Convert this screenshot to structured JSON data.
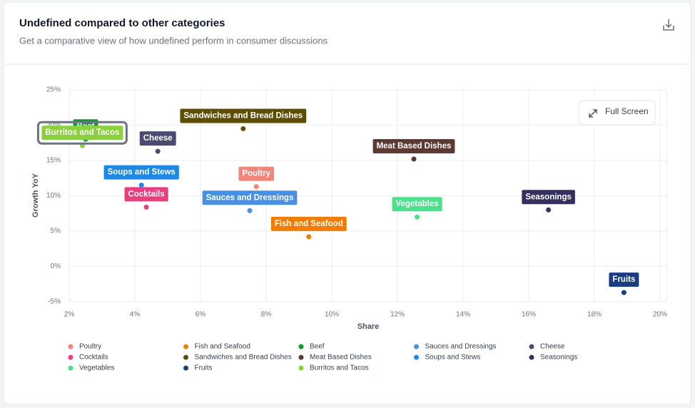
{
  "chart_data": {
    "type": "scatter",
    "title": "Undefined compared to other categories",
    "subtitle": "Get a comparative view of how undefined perform in consumer discussions",
    "full_screen": "Full Screen",
    "xlabel": "Share",
    "ylabel": "Growth YoY",
    "xlim": [
      2,
      20
    ],
    "xticks": [
      {
        "value": 2,
        "label": "2%"
      },
      {
        "value": 4,
        "label": "4%"
      },
      {
        "value": 6,
        "label": "6%"
      },
      {
        "value": 8,
        "label": "8%"
      },
      {
        "value": 10,
        "label": "10%"
      },
      {
        "value": 12,
        "label": "12%"
      },
      {
        "value": 14,
        "label": "14%"
      },
      {
        "value": 16,
        "label": "16%"
      },
      {
        "value": 18,
        "label": "18%"
      },
      {
        "value": 20,
        "label": "20%"
      }
    ],
    "ylim": [
      -5,
      25
    ],
    "yticks": [
      {
        "value": -5,
        "label": "-5%"
      },
      {
        "value": 0,
        "label": "0%"
      },
      {
        "value": 5,
        "label": "5%"
      },
      {
        "value": 10,
        "label": "10%"
      },
      {
        "value": 15,
        "label": "15%"
      },
      {
        "value": 20,
        "label": "20%"
      },
      {
        "value": 25,
        "label": "25%"
      }
    ],
    "grid": true,
    "series": [
      {
        "name": "Poultry",
        "color": "#f4857a",
        "x": [
          7.7
        ],
        "values": [
          11.3
        ]
      },
      {
        "name": "Fish and Seafood",
        "color": "#f07c00",
        "x": [
          9.3
        ],
        "values": [
          4.2
        ]
      },
      {
        "name": "Beef",
        "color": "#0a9a2f",
        "x": [
          2.5
        ],
        "values": [
          18
        ]
      },
      {
        "name": "Sauces and Dressings",
        "color": "#4a90e2",
        "x": [
          7.5
        ],
        "values": [
          7.9
        ]
      },
      {
        "name": "Cheese",
        "color": "#4b4b72",
        "x": [
          4.7
        ],
        "values": [
          16.3
        ]
      },
      {
        "name": "Cocktails",
        "color": "#e8407f",
        "x": [
          4.35
        ],
        "values": [
          8.4
        ]
      },
      {
        "name": "Sandwiches and Bread Dishes",
        "color": "#5c4d00",
        "x": [
          7.3
        ],
        "values": [
          19.5
        ]
      },
      {
        "name": "Meat Based Dishes",
        "color": "#5a3a33",
        "x": [
          12.5
        ],
        "values": [
          15.2
        ]
      },
      {
        "name": "Soups and Stews",
        "color": "#1e88e5",
        "x": [
          4.2
        ],
        "values": [
          11.5
        ]
      },
      {
        "name": "Seasonings",
        "color": "#36305e",
        "x": [
          16.6
        ],
        "values": [
          8.0
        ]
      },
      {
        "name": "Vegetables",
        "color": "#4ddf8a",
        "x": [
          12.6
        ],
        "values": [
          7.0
        ]
      },
      {
        "name": "Fruits",
        "color": "#1a3d80",
        "x": [
          18.9
        ],
        "values": [
          -3.7
        ]
      },
      {
        "name": "Burritos and Tacos",
        "color": "#8bd13d",
        "x": [
          2.4
        ],
        "values": [
          17.1
        ]
      }
    ]
  }
}
